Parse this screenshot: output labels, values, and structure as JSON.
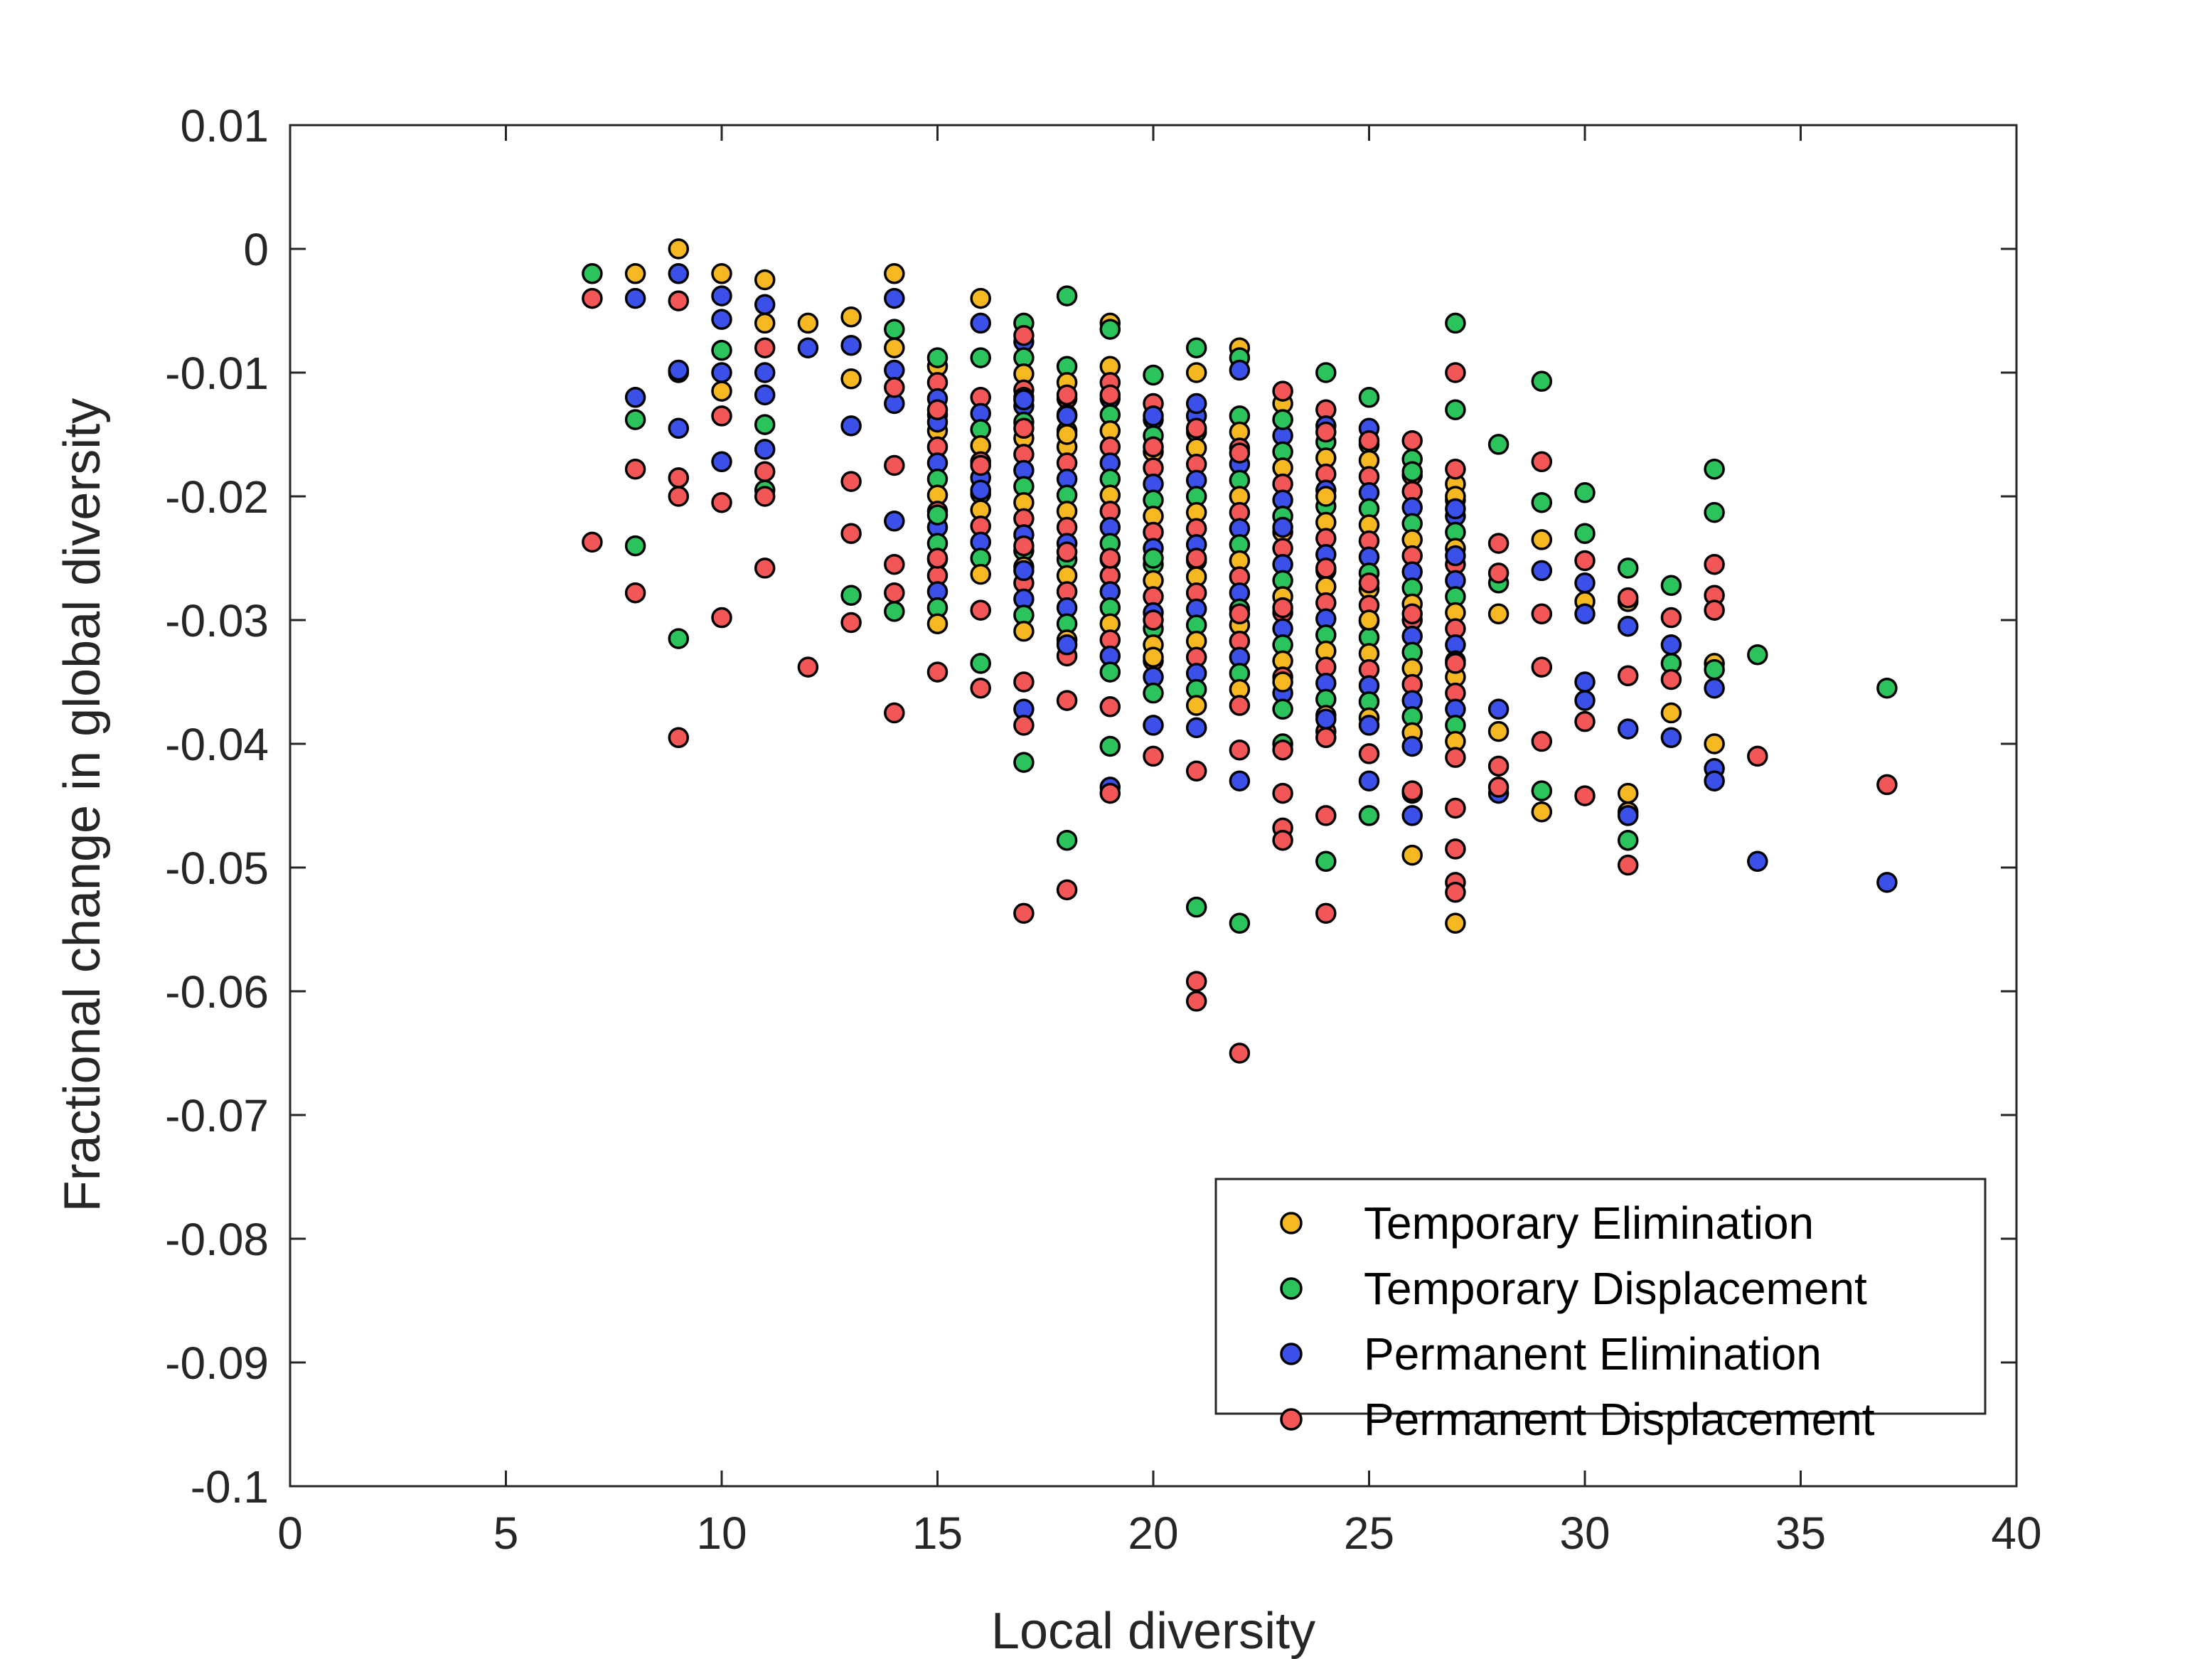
{
  "chart_data": {
    "type": "scatter",
    "title": "",
    "xlabel": "Local diversity",
    "ylabel": "Fractional change in global diversity",
    "xlim": [
      0,
      40
    ],
    "ylim": [
      -0.1,
      0.01
    ],
    "xticks": [
      0,
      5,
      10,
      15,
      20,
      25,
      30,
      35,
      40
    ],
    "xtick_labels": [
      "0",
      "5",
      "10",
      "15",
      "20",
      "25",
      "30",
      "35",
      "40"
    ],
    "yticks": [
      0.01,
      0,
      -0.01,
      -0.02,
      -0.03,
      -0.04,
      -0.05,
      -0.06,
      -0.07,
      -0.08,
      -0.09,
      -0.1
    ],
    "ytick_labels": [
      "0.01",
      "0",
      "-0.01",
      "-0.02",
      "-0.03",
      "-0.04",
      "-0.05",
      "-0.06",
      "-0.07",
      "-0.08",
      "-0.09",
      "-0.1"
    ],
    "grid": false,
    "legend_position": "bottom-right",
    "series": [
      {
        "name": "Temporary Elimination",
        "color": "#F5B821",
        "points": [
          [
            8,
            -0.002
          ],
          [
            9,
            0.0
          ],
          [
            10,
            -0.002
          ],
          [
            10,
            -0.0115
          ],
          [
            11,
            -0.0025
          ],
          [
            11,
            -0.006
          ],
          [
            12,
            -0.006
          ],
          [
            13,
            -0.0055
          ],
          [
            13,
            -0.0105
          ],
          [
            14,
            -0.002
          ],
          [
            14,
            -0.008
          ],
          [
            16,
            -0.004
          ],
          [
            17,
            -0.012
          ],
          [
            18,
            -0.015
          ],
          [
            19,
            -0.006
          ],
          [
            20,
            -0.033
          ],
          [
            21,
            -0.01
          ],
          [
            22,
            -0.008
          ],
          [
            23,
            -0.035
          ],
          [
            24,
            -0.02
          ],
          [
            25,
            -0.03
          ],
          [
            26,
            -0.049
          ],
          [
            27,
            -0.0545
          ],
          [
            27,
            -0.02
          ],
          [
            28,
            -0.0295
          ],
          [
            28,
            -0.039
          ],
          [
            29,
            -0.0235
          ],
          [
            29,
            -0.0455
          ],
          [
            30,
            -0.0285
          ],
          [
            31,
            -0.0285
          ],
          [
            31,
            -0.044
          ],
          [
            31,
            -0.0455
          ],
          [
            32,
            -0.0375
          ],
          [
            33,
            -0.0335
          ],
          [
            33,
            -0.04
          ]
        ]
      },
      {
        "name": "Temporary Displacement",
        "color": "#2BC35C",
        "points": [
          [
            7,
            -0.002
          ],
          [
            8,
            -0.0138
          ],
          [
            8,
            -0.024
          ],
          [
            9,
            -0.01
          ],
          [
            9,
            -0.0315
          ],
          [
            10,
            -0.0082
          ],
          [
            11,
            -0.0142
          ],
          [
            11,
            -0.0195
          ],
          [
            13,
            -0.028
          ],
          [
            14,
            -0.0065
          ],
          [
            14,
            -0.0293
          ],
          [
            15,
            -0.0088
          ],
          [
            15,
            -0.0215
          ],
          [
            16,
            -0.0088
          ],
          [
            16,
            -0.0335
          ],
          [
            17,
            -0.006
          ],
          [
            17,
            -0.0415
          ],
          [
            18,
            -0.0038
          ],
          [
            18,
            -0.0478
          ],
          [
            19,
            -0.0065
          ],
          [
            19,
            -0.0402
          ],
          [
            20,
            -0.0102
          ],
          [
            20,
            -0.025
          ],
          [
            21,
            -0.008
          ],
          [
            21,
            -0.0532
          ],
          [
            22,
            -0.0545
          ],
          [
            22,
            -0.0088
          ],
          [
            23,
            -0.0138
          ],
          [
            23,
            -0.04
          ],
          [
            24,
            -0.01
          ],
          [
            24,
            -0.0495
          ],
          [
            25,
            -0.012
          ],
          [
            25,
            -0.0458
          ],
          [
            26,
            -0.018
          ],
          [
            26,
            -0.044
          ],
          [
            27,
            -0.006
          ],
          [
            27,
            -0.013
          ],
          [
            28,
            -0.0158
          ],
          [
            28,
            -0.027
          ],
          [
            29,
            -0.0107
          ],
          [
            29,
            -0.0205
          ],
          [
            29,
            -0.0438
          ],
          [
            30,
            -0.0197
          ],
          [
            30,
            -0.023
          ],
          [
            31,
            -0.0258
          ],
          [
            31,
            -0.0478
          ],
          [
            32,
            -0.0272
          ],
          [
            32,
            -0.0335
          ],
          [
            33,
            -0.0178
          ],
          [
            33,
            -0.0213
          ],
          [
            33,
            -0.034
          ],
          [
            34,
            -0.0328
          ],
          [
            37,
            -0.0355
          ]
        ]
      },
      {
        "name": "Permanent Elimination",
        "color": "#3B50E8",
        "points": [
          [
            8,
            -0.004
          ],
          [
            8,
            -0.012
          ],
          [
            9,
            -0.002
          ],
          [
            9,
            -0.0098
          ],
          [
            9,
            -0.0145
          ],
          [
            10,
            -0.0038
          ],
          [
            10,
            -0.0057
          ],
          [
            10,
            -0.01
          ],
          [
            10,
            -0.0172
          ],
          [
            11,
            -0.0045
          ],
          [
            11,
            -0.01
          ],
          [
            11,
            -0.0118
          ],
          [
            11,
            -0.0162
          ],
          [
            12,
            -0.008
          ],
          [
            13,
            -0.0078
          ],
          [
            13,
            -0.0143
          ],
          [
            14,
            -0.004
          ],
          [
            14,
            -0.0098
          ],
          [
            14,
            -0.0125
          ],
          [
            14,
            -0.022
          ],
          [
            15,
            -0.014
          ],
          [
            16,
            -0.006
          ],
          [
            16,
            -0.0195
          ],
          [
            17,
            -0.0122
          ],
          [
            17,
            -0.026
          ],
          [
            17,
            -0.0372
          ],
          [
            18,
            -0.0135
          ],
          [
            18,
            -0.032
          ],
          [
            19,
            -0.0435
          ],
          [
            20,
            -0.0135
          ],
          [
            20,
            -0.0385
          ],
          [
            21,
            -0.0125
          ],
          [
            21,
            -0.0387
          ],
          [
            22,
            -0.0098
          ],
          [
            22,
            -0.043
          ],
          [
            23,
            -0.0225
          ],
          [
            24,
            -0.038
          ],
          [
            25,
            -0.0385
          ],
          [
            25,
            -0.043
          ],
          [
            26,
            -0.0402
          ],
          [
            26,
            -0.0458
          ],
          [
            27,
            -0.021
          ],
          [
            27,
            -0.0248
          ],
          [
            28,
            -0.0372
          ],
          [
            28,
            -0.044
          ],
          [
            29,
            -0.026
          ],
          [
            30,
            -0.027
          ],
          [
            30,
            -0.0295
          ],
          [
            30,
            -0.035
          ],
          [
            30,
            -0.0365
          ],
          [
            31,
            -0.0305
          ],
          [
            31,
            -0.0388
          ],
          [
            31,
            -0.0458
          ],
          [
            32,
            -0.032
          ],
          [
            32,
            -0.0395
          ],
          [
            33,
            -0.0355
          ],
          [
            33,
            -0.042
          ],
          [
            33,
            -0.043
          ],
          [
            34,
            -0.0495
          ],
          [
            37,
            -0.0512
          ]
        ]
      },
      {
        "name": "Permanent Displacement",
        "color": "#F25656",
        "points": [
          [
            7,
            -0.004
          ],
          [
            7,
            -0.0237
          ],
          [
            8,
            -0.0178
          ],
          [
            8,
            -0.0278
          ],
          [
            9,
            -0.0042
          ],
          [
            9,
            -0.0185
          ],
          [
            9,
            -0.02
          ],
          [
            9,
            -0.0395
          ],
          [
            10,
            -0.0135
          ],
          [
            10,
            -0.0205
          ],
          [
            10,
            -0.0298
          ],
          [
            11,
            -0.008
          ],
          [
            11,
            -0.018
          ],
          [
            11,
            -0.02
          ],
          [
            11,
            -0.0258
          ],
          [
            12,
            -0.0338
          ],
          [
            13,
            -0.0188
          ],
          [
            13,
            -0.023
          ],
          [
            13,
            -0.0302
          ],
          [
            14,
            -0.0112
          ],
          [
            14,
            -0.0175
          ],
          [
            14,
            -0.0255
          ],
          [
            14,
            -0.0278
          ],
          [
            14,
            -0.0375
          ],
          [
            15,
            -0.013
          ],
          [
            15,
            -0.025
          ],
          [
            15,
            -0.0342
          ],
          [
            16,
            -0.0175
          ],
          [
            16,
            -0.0292
          ],
          [
            16,
            -0.0355
          ],
          [
            17,
            -0.007
          ],
          [
            17,
            -0.0145
          ],
          [
            17,
            -0.024
          ],
          [
            17,
            -0.035
          ],
          [
            17,
            -0.0385
          ],
          [
            17,
            -0.0537
          ],
          [
            18,
            -0.0118
          ],
          [
            18,
            -0.0245
          ],
          [
            18,
            -0.0365
          ],
          [
            18,
            -0.0518
          ],
          [
            19,
            -0.0118
          ],
          [
            19,
            -0.025
          ],
          [
            19,
            -0.037
          ],
          [
            19,
            -0.044
          ],
          [
            20,
            -0.016
          ],
          [
            20,
            -0.03
          ],
          [
            20,
            -0.041
          ],
          [
            21,
            -0.0145
          ],
          [
            21,
            -0.025
          ],
          [
            21,
            -0.0422
          ],
          [
            21,
            -0.0592
          ],
          [
            21,
            -0.0608
          ],
          [
            22,
            -0.0165
          ],
          [
            22,
            -0.0295
          ],
          [
            22,
            -0.0405
          ],
          [
            22,
            -0.065
          ],
          [
            23,
            -0.0115
          ],
          [
            23,
            -0.029
          ],
          [
            23,
            -0.0405
          ],
          [
            23,
            -0.044
          ],
          [
            23,
            -0.0468
          ],
          [
            23,
            -0.0478
          ],
          [
            24,
            -0.0148
          ],
          [
            24,
            -0.0258
          ],
          [
            24,
            -0.0395
          ],
          [
            24,
            -0.0458
          ],
          [
            24,
            -0.0537
          ],
          [
            25,
            -0.0155
          ],
          [
            25,
            -0.027
          ],
          [
            25,
            -0.0408
          ],
          [
            26,
            -0.0155
          ],
          [
            26,
            -0.0295
          ],
          [
            26,
            -0.0438
          ],
          [
            27,
            -0.01
          ],
          [
            27,
            -0.0178
          ],
          [
            27,
            -0.0335
          ],
          [
            27,
            -0.0452
          ],
          [
            27,
            -0.0485
          ],
          [
            27,
            -0.0512
          ],
          [
            27,
            -0.052
          ],
          [
            28,
            -0.0238
          ],
          [
            28,
            -0.0262
          ],
          [
            28,
            -0.0418
          ],
          [
            28,
            -0.0435
          ],
          [
            29,
            -0.0172
          ],
          [
            29,
            -0.0295
          ],
          [
            29,
            -0.0338
          ],
          [
            29,
            -0.0398
          ],
          [
            30,
            -0.0252
          ],
          [
            30,
            -0.0382
          ],
          [
            30,
            -0.0442
          ],
          [
            31,
            -0.0282
          ],
          [
            31,
            -0.0345
          ],
          [
            31,
            -0.0498
          ],
          [
            32,
            -0.0298
          ],
          [
            32,
            -0.0348
          ],
          [
            33,
            -0.0255
          ],
          [
            33,
            -0.028
          ],
          [
            33,
            -0.0292
          ],
          [
            34,
            -0.041
          ],
          [
            37,
            -0.0433
          ]
        ]
      }
    ],
    "dense_band": {
      "x": [
        15,
        16,
        17,
        18,
        19,
        20,
        21,
        22,
        23,
        24,
        25,
        26,
        27
      ],
      "y_top": [
        -0.0095,
        -0.012,
        -0.0075,
        -0.0095,
        -0.0095,
        -0.0125,
        -0.0135,
        -0.0135,
        -0.0125,
        -0.013,
        -0.0145,
        -0.017,
        -0.019
      ],
      "y_bottom": [
        -0.031,
        -0.027,
        -0.0315,
        -0.033,
        -0.0345,
        -0.036,
        -0.0375,
        -0.0375,
        -0.038,
        -0.039,
        -0.038,
        -0.04,
        -0.042
      ]
    }
  }
}
